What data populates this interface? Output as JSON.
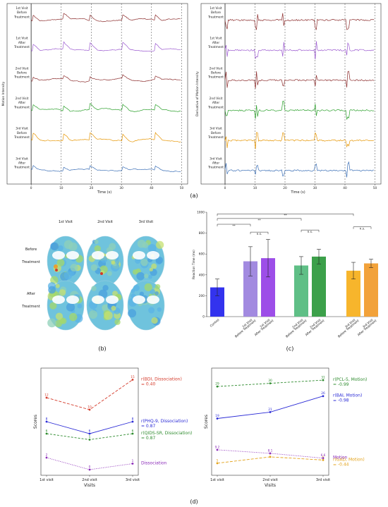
{
  "captions": {
    "a": "(a)",
    "b": "(b)",
    "c": "(c)",
    "d": "(d)"
  },
  "chart_data": [
    {
      "id": "a-left",
      "type": "line",
      "ylabel": "Motion Intensity",
      "xlabel": "Time (s)",
      "xticks": [
        0,
        10,
        20,
        30,
        40,
        50
      ],
      "xlim": [
        -8,
        52
      ],
      "series": [
        {
          "name": "1st Visit Before Treatment",
          "color": "#8c2d2d"
        },
        {
          "name": "1st Visit After Treatment",
          "color": "#9b59d0"
        },
        {
          "name": "2nd Visit Before Treatment",
          "color": "#8c2d2d"
        },
        {
          "name": "2nd Visit After Treatment",
          "color": "#2ca02c"
        },
        {
          "name": "3rd Visit Before Treatment",
          "color": "#e69500"
        },
        {
          "name": "3rd Visit After Treatment",
          "color": "#3b6fb6"
        }
      ],
      "labels": [
        [
          "1st Visit",
          "Before",
          "Treatment"
        ],
        [
          "1st Visit",
          "After",
          "Treatment"
        ],
        [
          "2nd Visit",
          "Before",
          "Treatment"
        ],
        [
          "2nd Visit",
          "After",
          "Treatment"
        ],
        [
          "3rd Visit",
          "Before",
          "Treatment"
        ],
        [
          "3rd Visit",
          "After",
          "Treatment"
        ]
      ]
    },
    {
      "id": "a-right",
      "type": "line",
      "ylabel": "Derivative of Motion Intensity",
      "xlabel": "Time (s)",
      "xticks": [
        0,
        10,
        20,
        30,
        40,
        50
      ],
      "xlim": [
        -8,
        52
      ],
      "labels": [
        [
          "1st Visit",
          "Before",
          "Treatment"
        ],
        [
          "1st Visit",
          "After",
          "Treatment"
        ],
        [
          "2nd Visit",
          "Before",
          "Treatment"
        ],
        [
          "2nd Visit",
          "After",
          "Treatment"
        ],
        [
          "3rd Visit",
          "Before",
          "Treatment"
        ],
        [
          "3rd Visit",
          "After",
          "Treatment"
        ]
      ]
    },
    {
      "id": "b",
      "type": "heatmap",
      "columns": [
        "1st Visit",
        "2nd Visit",
        "3rd Visit"
      ],
      "rows": [
        [
          "Before",
          "Treatment"
        ],
        [
          "After",
          "Treatment"
        ]
      ]
    },
    {
      "id": "c",
      "type": "bar",
      "ylabel": "Reaction Time (ms)",
      "ylim": [
        0,
        1000
      ],
      "yticks": [
        0,
        200,
        400,
        600,
        800,
        1000
      ],
      "bars": [
        {
          "label": [
            "Control"
          ],
          "value": 280,
          "err": 80,
          "color": "#3333ee"
        },
        {
          "label": [
            "1st Visit",
            "Before Treatment"
          ],
          "value": 530,
          "err": 140,
          "color": "#a28ae0"
        },
        {
          "label": [
            "1st Visit",
            "After Treatment"
          ],
          "value": 560,
          "err": 180,
          "color": "#9d4ee8"
        },
        {
          "label": [
            "2nd Visit",
            "Before Treatment"
          ],
          "value": 490,
          "err": 85,
          "color": "#5fbf86"
        },
        {
          "label": [
            "2nd Visit",
            "After Treatment"
          ],
          "value": 575,
          "err": 70,
          "color": "#3ca04a"
        },
        {
          "label": [
            "3rd Visit",
            "Before Treatment"
          ],
          "value": 440,
          "err": 80,
          "color": "#f7b52c"
        },
        {
          "label": [
            "3rd Visit",
            "After Treatment"
          ],
          "value": 510,
          "err": 40,
          "color": "#f2a23a"
        }
      ],
      "significance": [
        {
          "from": 0,
          "to": 1,
          "level": 885,
          "mark": "**"
        },
        {
          "from": 1,
          "to": 2,
          "level": 810,
          "mark": "n.s."
        },
        {
          "from": 0,
          "to": 3,
          "level": 940,
          "mark": "**"
        },
        {
          "from": 3,
          "to": 4,
          "level": 830,
          "mark": "n.s."
        },
        {
          "from": 0,
          "to": 5,
          "level": 985,
          "mark": "**"
        },
        {
          "from": 5,
          "to": 6,
          "level": 860,
          "mark": "n.s."
        }
      ]
    },
    {
      "id": "d-left",
      "type": "line",
      "xlabel": "Visits",
      "ylabel": "Scores",
      "categories": [
        "1st visit",
        "2nd visit",
        "3rd visit"
      ],
      "series": [
        {
          "values": [
            8,
            6,
            8
          ],
          "color": "#2a2ad6",
          "dash": "",
          "legend": [
            "r(PHQ-9, Dissociation)",
            "= 0.87"
          ]
        },
        {
          "values": [
            6,
            5,
            6
          ],
          "color": "#2e8b2e",
          "dash": "3,2",
          "legend": [
            "r(QIDS-SR, Dissociation)",
            "= 0.87"
          ]
        },
        {
          "values": [
            12,
            10,
            15
          ],
          "color": "#d43a2a",
          "dash": "4,2",
          "legend": [
            "r(BDI, Dissociation)",
            "= 0.40"
          ]
        },
        {
          "values": [
            2,
            0,
            1
          ],
          "color": "#8a2ab8",
          "dash": "1,1.5",
          "legend": [
            "Dissociation"
          ]
        }
      ]
    },
    {
      "id": "d-right",
      "type": "line",
      "xlabel": "Visits",
      "ylabel": "Scores",
      "categories": [
        "1st visit",
        "2nd visit",
        "3rd visit"
      ],
      "series": [
        {
          "values": [
            5,
            7,
            6
          ],
          "color": "#e3a21a",
          "dash": "4,2",
          "legend": [
            "r(GAD, Motion)",
            "= -0.44"
          ]
        },
        {
          "values": [
            29,
            30,
            31
          ],
          "color": "#2e8b2e",
          "dash": "3,2",
          "legend": [
            "r(PCL-5, Motion)",
            "= -0.99"
          ]
        },
        {
          "values": [
            19,
            21,
            26
          ],
          "color": "#2a2ad6",
          "dash": "",
          "legend": [
            "r(BAI, Motion)",
            "= -0.98"
          ]
        },
        {
          "values": [
            9.2,
            8.1,
            6.6
          ],
          "color": "#8a2ab8",
          "dash": "1,1.5",
          "legend": [
            "Motion"
          ]
        }
      ]
    }
  ]
}
